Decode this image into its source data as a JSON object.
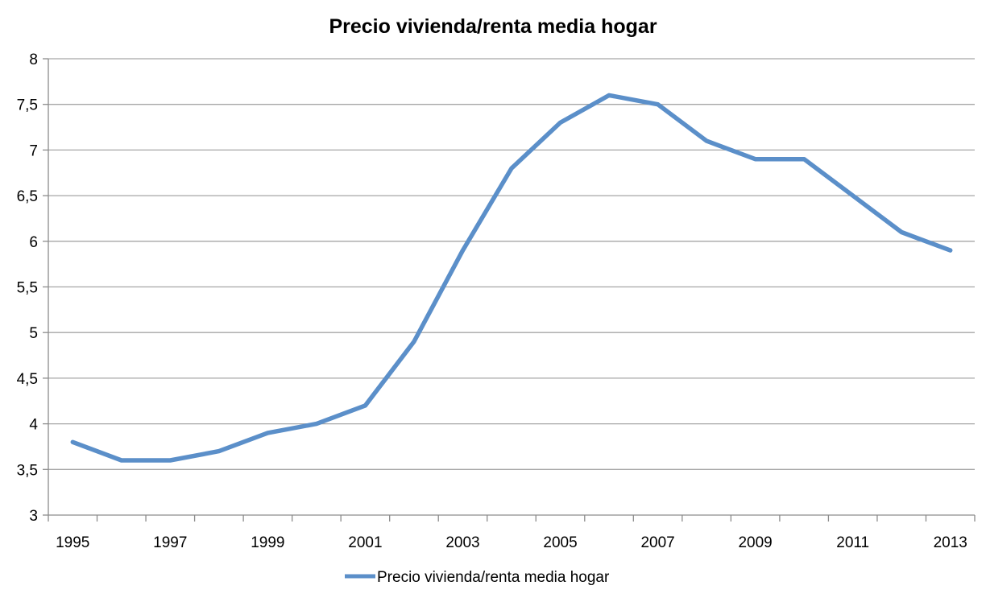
{
  "chart_data": {
    "type": "line",
    "title": "Precio vivienda/renta media hogar",
    "xlabel": "",
    "ylabel": "",
    "x": [
      1995,
      1996,
      1997,
      1998,
      1999,
      2000,
      2001,
      2002,
      2003,
      2004,
      2005,
      2006,
      2007,
      2008,
      2009,
      2010,
      2011,
      2012,
      2013
    ],
    "x_tick_labels": [
      "1995",
      "1997",
      "1999",
      "2001",
      "2003",
      "2005",
      "2007",
      "2009",
      "2011",
      "2013"
    ],
    "y_tick_labels": [
      "3",
      "3,5",
      "4",
      "4,5",
      "5",
      "5,5",
      "6",
      "6,5",
      "7",
      "7,5",
      "8"
    ],
    "ylim": [
      3,
      8
    ],
    "grid": "horizontal",
    "legend_position": "bottom",
    "series": [
      {
        "name": "Precio vivienda/renta media hogar",
        "color": "#5B8FC9",
        "values": [
          3.8,
          3.6,
          3.6,
          3.7,
          3.9,
          4.0,
          4.2,
          4.9,
          5.9,
          6.8,
          7.3,
          7.6,
          7.5,
          7.1,
          6.9,
          6.9,
          6.5,
          6.1,
          5.9
        ]
      }
    ]
  }
}
